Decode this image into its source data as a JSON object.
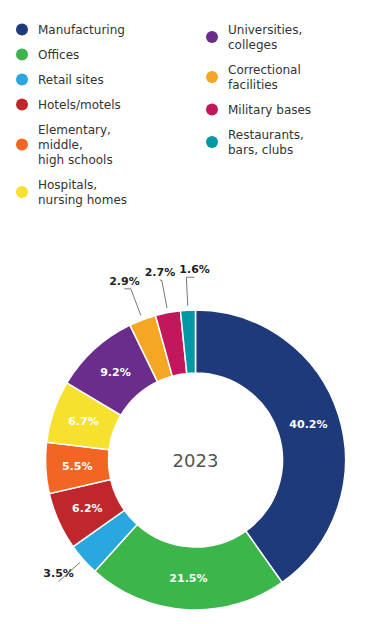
{
  "chart_data": {
    "type": "pie",
    "title": "2023",
    "categories": [
      "Manufacturing",
      "Offices",
      "Retail sites",
      "Hotels/motels",
      "Elementary,\nmiddle,\nhigh schools",
      "Hospitals,\nnursing homes",
      "Universities,\ncolleges",
      "Correctional\nfacilities",
      "Military bases",
      "Restaurants,\nbars, clubs"
    ],
    "values": [
      40.2,
      21.5,
      3.5,
      6.2,
      5.5,
      6.7,
      9.2,
      2.9,
      2.7,
      1.6
    ],
    "value_labels": [
      "40.2%",
      "21.5%",
      "3.5%",
      "6.2%",
      "5.5%",
      "6.7%",
      "9.2%",
      "2.9%",
      "2.7%",
      "1.6%"
    ],
    "colors": [
      "#1e3a7b",
      "#3cb54a",
      "#29a8e0",
      "#c0272d",
      "#f26522",
      "#f5e12e",
      "#6b2d8b",
      "#f5a623",
      "#c2185b",
      "#0097a7"
    ],
    "legend": "top",
    "data_labels": true
  }
}
